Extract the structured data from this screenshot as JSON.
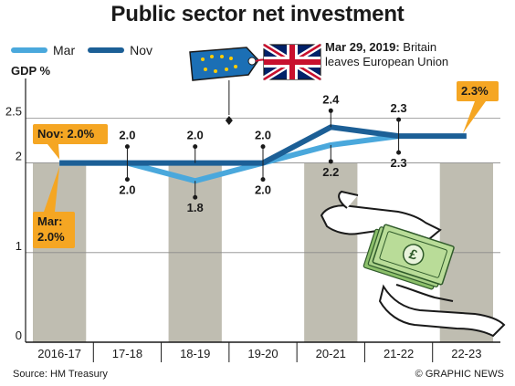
{
  "header": {
    "title": "Public sector net investment"
  },
  "footer": {
    "source": "Source: HM Treasury",
    "credit": "© GRAPHIC NEWS"
  },
  "annotation": {
    "date": "Mar 29, 2019:",
    "text_line1": "Britain",
    "text_line2": "leaves European Union",
    "at_category": "19-20"
  },
  "colors": {
    "mar": "#4aa8dc",
    "nov": "#1c5f96",
    "bar": "#bfbdb1",
    "callout_fill": "#f5a623",
    "background": "#ffffff",
    "grid": "#8a8a8a"
  },
  "icons": [
    "eu-flag-tag-icon",
    "union-jack-icon",
    "hands-icon",
    "banknotes-icon",
    "pound-sign-icon"
  ],
  "chart_data": {
    "type": "line",
    "ylabel": "GDP %",
    "ylim": [
      0,
      2.5
    ],
    "yticks": [
      0,
      1,
      2,
      2.5
    ],
    "categories": [
      "2016-17",
      "17-18",
      "18-19",
      "19-20",
      "20-21",
      "21-22",
      "22-23"
    ],
    "series": [
      {
        "name": "Mar",
        "values": [
          2.0,
          2.0,
          1.8,
          2.0,
          2.2,
          2.3,
          null
        ]
      },
      {
        "name": "Nov",
        "values": [
          2.0,
          2.0,
          2.0,
          2.0,
          2.4,
          2.3,
          2.3
        ]
      }
    ],
    "callouts": {
      "nov_start": "Nov: 2.0%",
      "mar_start_line1": "Mar:",
      "mar_start_line2": "2.0%",
      "end": "2.3%"
    },
    "point_labels": {
      "above": [
        "2.0",
        "2.0",
        "2.0",
        "2.4",
        "2.3"
      ],
      "below": [
        "2.0",
        "1.8",
        "2.0",
        "2.2",
        "2.3"
      ]
    },
    "alternating_bands": true,
    "grid": true,
    "legend_position": "top-left"
  }
}
